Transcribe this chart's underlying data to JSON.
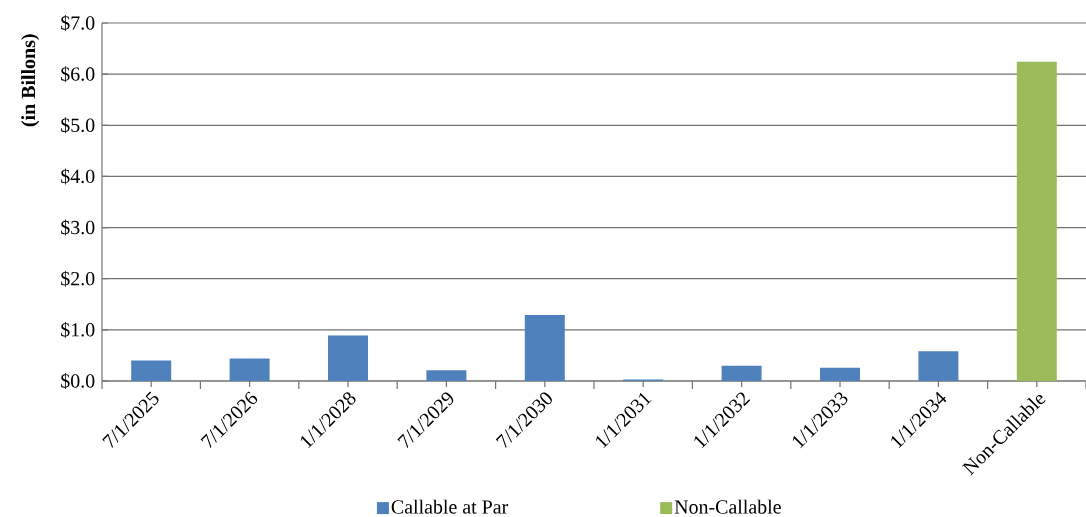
{
  "chart_data": {
    "type": "bar",
    "ylabel": "(in Billons)",
    "categories": [
      "7/1/2025",
      "7/1/2026",
      "1/1/2028",
      "7/1/2029",
      "7/1/2030",
      "1/1/2031",
      "1/1/2032",
      "1/1/2033",
      "1/1/2034",
      "Non-Callable"
    ],
    "series": [
      {
        "name": "Callable at Par",
        "color": "#4f81bd",
        "values": [
          0.4,
          0.44,
          0.89,
          0.21,
          1.29,
          0.03,
          0.3,
          0.26,
          0.58,
          null
        ]
      },
      {
        "name": "Non-Callable",
        "color": "#9bbb59",
        "values": [
          null,
          null,
          null,
          null,
          null,
          null,
          null,
          null,
          null,
          6.24
        ]
      }
    ],
    "ylim": [
      0,
      7
    ],
    "yticks": [
      {
        "value": 0,
        "label": "$0.0"
      },
      {
        "value": 1,
        "label": "$1.0"
      },
      {
        "value": 2,
        "label": "$2.0"
      },
      {
        "value": 3,
        "label": "$3.0"
      },
      {
        "value": 4,
        "label": "$4.0"
      },
      {
        "value": 5,
        "label": "$5.0"
      },
      {
        "value": 6,
        "label": "$6.0"
      },
      {
        "value": 7,
        "label": "$7.0"
      }
    ],
    "grid": "y",
    "legend": "bottom"
  }
}
